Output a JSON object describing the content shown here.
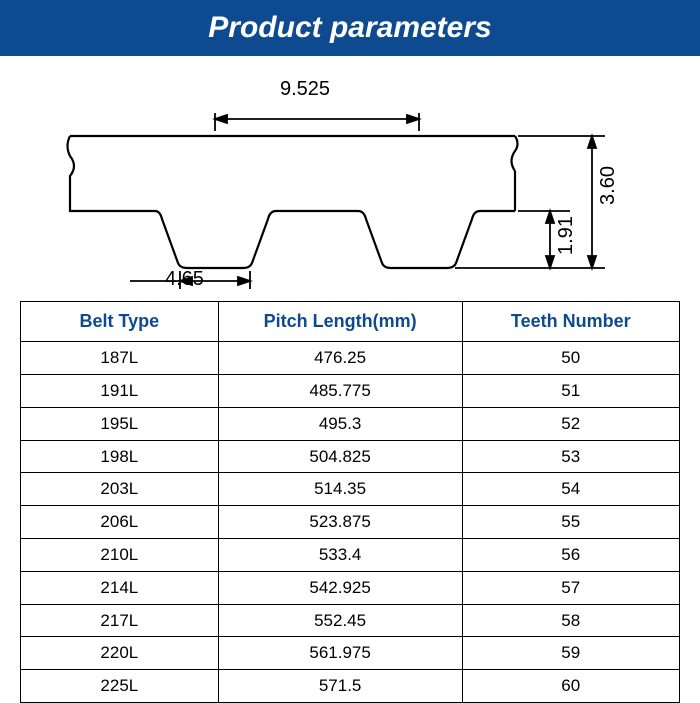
{
  "header": {
    "title": "Product parameters",
    "background_color": "#0e4a8f",
    "text_color": "#ffffff",
    "font_size": 30
  },
  "diagram": {
    "pitch_dim": "9.525",
    "tooth_width_dim": "4.65",
    "tooth_height_dim": "1.91",
    "belt_height_dim": "3.60",
    "line_color": "#000000",
    "line_width": 2
  },
  "table": {
    "header_color": "#0e4a8f",
    "columns": [
      "Belt Type",
      "Pitch Length(mm)",
      "Teeth Number"
    ],
    "rows": [
      [
        "187L",
        "476.25",
        "50"
      ],
      [
        "191L",
        "485.775",
        "51"
      ],
      [
        "195L",
        "495.3",
        "52"
      ],
      [
        "198L",
        "504.825",
        "53"
      ],
      [
        "203L",
        "514.35",
        "54"
      ],
      [
        "206L",
        "523.875",
        "55"
      ],
      [
        "210L",
        "533.4",
        "56"
      ],
      [
        "214L",
        "542.925",
        "57"
      ],
      [
        "217L",
        "552.45",
        "58"
      ],
      [
        "220L",
        "561.975",
        "59"
      ],
      [
        "225L",
        "571.5",
        "60"
      ]
    ]
  }
}
